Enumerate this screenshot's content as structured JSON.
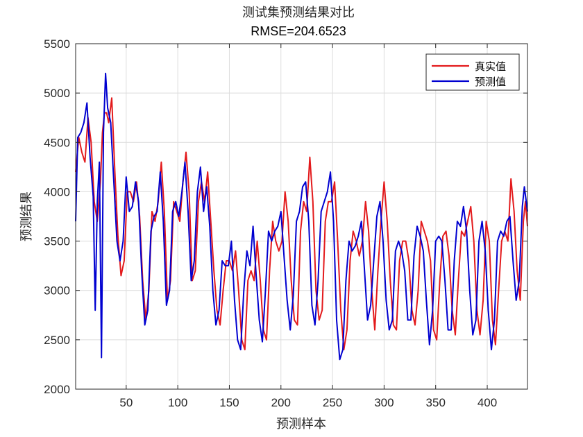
{
  "chart_data": {
    "type": "line",
    "title": "测试集预测结果对比",
    "subtitle": "RMSE=204.6523",
    "xlabel": "预测样本",
    "ylabel": "预测结果",
    "xlim": [
      1,
      439
    ],
    "ylim": [
      2000,
      5500
    ],
    "xticks": [
      50,
      100,
      150,
      200,
      250,
      300,
      350,
      400
    ],
    "yticks": [
      2000,
      2500,
      3000,
      3500,
      4000,
      4500,
      5000,
      5500
    ],
    "grid": true,
    "legend_position": "top-right",
    "colors": {
      "true": "#e31a1c",
      "pred": "#0000d0",
      "grid": "#dcdcdc",
      "axis": "#262626"
    },
    "series": [
      {
        "name": "真实值",
        "key": "true",
        "points": [
          [
            1,
            4200
          ],
          [
            4,
            4550
          ],
          [
            7,
            4400
          ],
          [
            10,
            4300
          ],
          [
            13,
            4750
          ],
          [
            16,
            4500
          ],
          [
            19,
            3900
          ],
          [
            22,
            3700
          ],
          [
            25,
            4100
          ],
          [
            27,
            4600
          ],
          [
            29,
            4800
          ],
          [
            31,
            4800
          ],
          [
            33,
            4700
          ],
          [
            36,
            4950
          ],
          [
            39,
            4200
          ],
          [
            42,
            3550
          ],
          [
            45,
            3150
          ],
          [
            48,
            3300
          ],
          [
            51,
            4000
          ],
          [
            54,
            4000
          ],
          [
            57,
            3900
          ],
          [
            60,
            4100
          ],
          [
            63,
            3750
          ],
          [
            66,
            3100
          ],
          [
            69,
            2700
          ],
          [
            72,
            3000
          ],
          [
            75,
            3800
          ],
          [
            78,
            3700
          ],
          [
            81,
            3900
          ],
          [
            84,
            4300
          ],
          [
            87,
            3800
          ],
          [
            90,
            2900
          ],
          [
            93,
            3100
          ],
          [
            96,
            3900
          ],
          [
            99,
            3800
          ],
          [
            102,
            3700
          ],
          [
            105,
            4100
          ],
          [
            108,
            4400
          ],
          [
            111,
            4000
          ],
          [
            114,
            3100
          ],
          [
            117,
            3200
          ],
          [
            120,
            3900
          ],
          [
            123,
            4100
          ],
          [
            126,
            3900
          ],
          [
            129,
            4200
          ],
          [
            132,
            3700
          ],
          [
            135,
            3200
          ],
          [
            138,
            2800
          ],
          [
            141,
            2650
          ],
          [
            144,
            3000
          ],
          [
            147,
            3300
          ],
          [
            150,
            3300
          ],
          [
            153,
            3200
          ],
          [
            156,
            3400
          ],
          [
            159,
            3000
          ],
          [
            162,
            2500
          ],
          [
            165,
            2400
          ],
          [
            168,
            3100
          ],
          [
            171,
            3200
          ],
          [
            174,
            3100
          ],
          [
            177,
            3500
          ],
          [
            180,
            3100
          ],
          [
            183,
            2600
          ],
          [
            186,
            2500
          ],
          [
            189,
            3200
          ],
          [
            192,
            3700
          ],
          [
            195,
            3500
          ],
          [
            198,
            3400
          ],
          [
            201,
            3500
          ],
          [
            204,
            4000
          ],
          [
            207,
            3700
          ],
          [
            210,
            3100
          ],
          [
            213,
            2700
          ],
          [
            216,
            2650
          ],
          [
            219,
            3600
          ],
          [
            222,
            3900
          ],
          [
            225,
            3800
          ],
          [
            228,
            4350
          ],
          [
            231,
            3900
          ],
          [
            234,
            3000
          ],
          [
            237,
            2700
          ],
          [
            240,
            2800
          ],
          [
            243,
            3700
          ],
          [
            246,
            3900
          ],
          [
            249,
            3900
          ],
          [
            252,
            4100
          ],
          [
            255,
            3500
          ],
          [
            258,
            2800
          ],
          [
            261,
            2400
          ],
          [
            264,
            2600
          ],
          [
            267,
            3300
          ],
          [
            270,
            3600
          ],
          [
            273,
            3500
          ],
          [
            276,
            3350
          ],
          [
            279,
            3500
          ],
          [
            282,
            3900
          ],
          [
            285,
            3600
          ],
          [
            288,
            3000
          ],
          [
            291,
            2600
          ],
          [
            294,
            3200
          ],
          [
            297,
            3700
          ],
          [
            300,
            4100
          ],
          [
            303,
            3700
          ],
          [
            306,
            3100
          ],
          [
            309,
            2650
          ],
          [
            312,
            2600
          ],
          [
            315,
            3300
          ],
          [
            318,
            3500
          ],
          [
            321,
            3500
          ],
          [
            324,
            3300
          ],
          [
            327,
            2800
          ],
          [
            330,
            2650
          ],
          [
            333,
            3000
          ],
          [
            336,
            3700
          ],
          [
            339,
            3600
          ],
          [
            342,
            3500
          ],
          [
            345,
            3300
          ],
          [
            348,
            2600
          ],
          [
            351,
            2500
          ],
          [
            354,
            3100
          ],
          [
            357,
            3550
          ],
          [
            360,
            3600
          ],
          [
            363,
            3350
          ],
          [
            366,
            2800
          ],
          [
            369,
            2550
          ],
          [
            372,
            3100
          ],
          [
            375,
            3600
          ],
          [
            378,
            3550
          ],
          [
            381,
            3700
          ],
          [
            384,
            3850
          ],
          [
            387,
            3500
          ],
          [
            390,
            2800
          ],
          [
            393,
            2550
          ],
          [
            396,
            2900
          ],
          [
            399,
            3700
          ],
          [
            402,
            3500
          ],
          [
            405,
            2700
          ],
          [
            408,
            2450
          ],
          [
            411,
            3000
          ],
          [
            414,
            3500
          ],
          [
            417,
            3600
          ],
          [
            420,
            3500
          ],
          [
            423,
            4130
          ],
          [
            426,
            3800
          ],
          [
            429,
            3200
          ],
          [
            432,
            2900
          ],
          [
            435,
            3700
          ],
          [
            437,
            3900
          ],
          [
            439,
            3650
          ]
        ]
      },
      {
        "name": "预测值",
        "key": "pred",
        "points": [
          [
            1,
            3700
          ],
          [
            3,
            4550
          ],
          [
            6,
            4600
          ],
          [
            9,
            4700
          ],
          [
            12,
            4900
          ],
          [
            15,
            4350
          ],
          [
            18,
            3950
          ],
          [
            20,
            2800
          ],
          [
            22,
            3900
          ],
          [
            24,
            4300
          ],
          [
            26,
            2320
          ],
          [
            28,
            4600
          ],
          [
            30,
            5200
          ],
          [
            32,
            4850
          ],
          [
            35,
            4700
          ],
          [
            38,
            4100
          ],
          [
            41,
            3500
          ],
          [
            44,
            3300
          ],
          [
            47,
            3500
          ],
          [
            50,
            4150
          ],
          [
            53,
            3800
          ],
          [
            56,
            3850
          ],
          [
            59,
            4100
          ],
          [
            62,
            3900
          ],
          [
            65,
            3200
          ],
          [
            68,
            2650
          ],
          [
            71,
            2800
          ],
          [
            74,
            3600
          ],
          [
            77,
            3750
          ],
          [
            80,
            3800
          ],
          [
            83,
            4200
          ],
          [
            86,
            3700
          ],
          [
            89,
            2850
          ],
          [
            92,
            3000
          ],
          [
            95,
            3800
          ],
          [
            98,
            3900
          ],
          [
            101,
            3750
          ],
          [
            104,
            4000
          ],
          [
            107,
            4300
          ],
          [
            110,
            3800
          ],
          [
            113,
            3100
          ],
          [
            116,
            3300
          ],
          [
            119,
            4000
          ],
          [
            122,
            4250
          ],
          [
            125,
            3800
          ],
          [
            128,
            4050
          ],
          [
            131,
            3650
          ],
          [
            134,
            3000
          ],
          [
            137,
            2650
          ],
          [
            140,
            2800
          ],
          [
            143,
            3300
          ],
          [
            146,
            3250
          ],
          [
            149,
            3250
          ],
          [
            152,
            3500
          ],
          [
            155,
            2900
          ],
          [
            158,
            2500
          ],
          [
            161,
            2400
          ],
          [
            164,
            3000
          ],
          [
            167,
            3400
          ],
          [
            170,
            3250
          ],
          [
            173,
            3650
          ],
          [
            176,
            3150
          ],
          [
            179,
            2700
          ],
          [
            182,
            2480
          ],
          [
            185,
            3000
          ],
          [
            188,
            3600
          ],
          [
            191,
            3500
          ],
          [
            194,
            3600
          ],
          [
            197,
            3650
          ],
          [
            200,
            3800
          ],
          [
            203,
            3350
          ],
          [
            206,
            2900
          ],
          [
            209,
            2600
          ],
          [
            212,
            2950
          ],
          [
            215,
            3700
          ],
          [
            218,
            3800
          ],
          [
            221,
            4050
          ],
          [
            224,
            4100
          ],
          [
            227,
            3700
          ],
          [
            230,
            2850
          ],
          [
            233,
            2650
          ],
          [
            236,
            3100
          ],
          [
            239,
            3800
          ],
          [
            242,
            3900
          ],
          [
            245,
            4000
          ],
          [
            248,
            4200
          ],
          [
            251,
            3700
          ],
          [
            254,
            2700
          ],
          [
            257,
            2300
          ],
          [
            260,
            2400
          ],
          [
            263,
            3100
          ],
          [
            266,
            3500
          ],
          [
            269,
            3400
          ],
          [
            272,
            3450
          ],
          [
            275,
            3550
          ],
          [
            278,
            3700
          ],
          [
            281,
            3200
          ],
          [
            284,
            2700
          ],
          [
            287,
            2850
          ],
          [
            290,
            3300
          ],
          [
            293,
            3750
          ],
          [
            296,
            3900
          ],
          [
            299,
            3500
          ],
          [
            302,
            2900
          ],
          [
            305,
            2600
          ],
          [
            308,
            2700
          ],
          [
            311,
            3400
          ],
          [
            314,
            3500
          ],
          [
            317,
            3400
          ],
          [
            320,
            3200
          ],
          [
            323,
            2700
          ],
          [
            326,
            2700
          ],
          [
            329,
            3350
          ],
          [
            332,
            3650
          ],
          [
            335,
            3550
          ],
          [
            338,
            3400
          ],
          [
            341,
            2900
          ],
          [
            344,
            2450
          ],
          [
            347,
            2800
          ],
          [
            350,
            3500
          ],
          [
            353,
            3550
          ],
          [
            356,
            3500
          ],
          [
            359,
            3100
          ],
          [
            362,
            2600
          ],
          [
            365,
            2600
          ],
          [
            368,
            3300
          ],
          [
            371,
            3700
          ],
          [
            374,
            3650
          ],
          [
            377,
            3850
          ],
          [
            380,
            3600
          ],
          [
            383,
            3000
          ],
          [
            386,
            2550
          ],
          [
            389,
            2700
          ],
          [
            392,
            3500
          ],
          [
            395,
            3700
          ],
          [
            398,
            3400
          ],
          [
            401,
            2800
          ],
          [
            404,
            2400
          ],
          [
            407,
            2700
          ],
          [
            410,
            3500
          ],
          [
            413,
            3600
          ],
          [
            416,
            3550
          ],
          [
            419,
            3700
          ],
          [
            422,
            3750
          ],
          [
            425,
            3300
          ],
          [
            428,
            2900
          ],
          [
            431,
            3100
          ],
          [
            434,
            3850
          ],
          [
            436,
            4050
          ],
          [
            439,
            3800
          ]
        ]
      }
    ]
  }
}
